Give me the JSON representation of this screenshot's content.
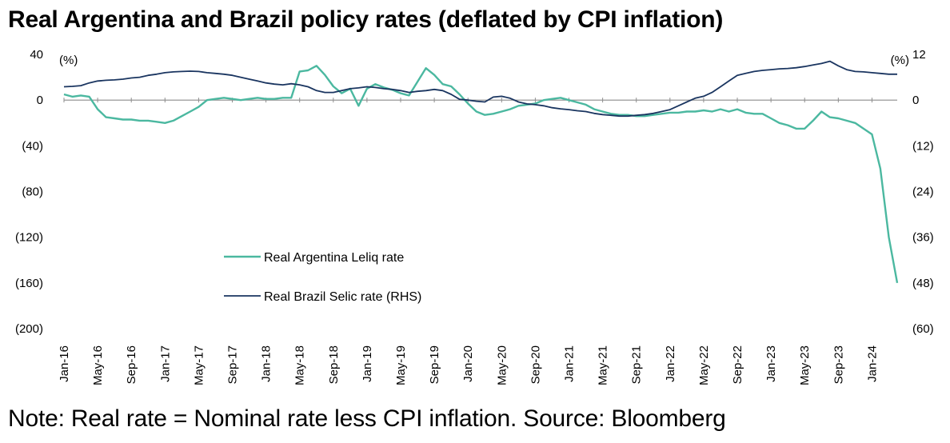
{
  "title": "Real Argentina and Brazil policy rates (deflated by CPI inflation)",
  "note": "Note: Real rate = Nominal rate less CPI inflation. Source: Bloomberg",
  "chart_data": {
    "type": "line",
    "title": "Real Argentina and Brazil policy rates (deflated by CPI inflation)",
    "left_axis": {
      "unit_label": "(%)",
      "range": [
        -200,
        40
      ],
      "ticks": [
        40,
        0,
        -40,
        -80,
        -120,
        -160,
        -200
      ],
      "tick_labels": [
        "40",
        "0",
        "(40)",
        "(80)",
        "(120)",
        "(160)",
        "(200)"
      ]
    },
    "right_axis": {
      "unit_label": "(%)",
      "range": [
        -60,
        12
      ],
      "ticks": [
        12,
        0,
        -12,
        -24,
        -36,
        -48,
        -60
      ],
      "tick_labels": [
        "12",
        "0",
        "(12)",
        "(24)",
        "(36)",
        "(48)",
        "(60)"
      ]
    },
    "x_range": [
      "2016-01",
      "2024-04"
    ],
    "x_tick_labels": [
      "Jan-16",
      "May-16",
      "Sep-16",
      "Jan-17",
      "May-17",
      "Sep-17",
      "Jan-18",
      "May-18",
      "Sep-18",
      "Jan-19",
      "May-19",
      "Sep-19",
      "Jan-20",
      "May-20",
      "Sep-20",
      "Jan-21",
      "May-21",
      "Sep-21",
      "Jan-22",
      "May-22",
      "Sep-22",
      "Jan-23",
      "May-23",
      "Sep-23",
      "Jan-24"
    ],
    "legend_placement": "center-left",
    "colors": {
      "argentina": "#4bb8a0",
      "brazil": "#1a3560",
      "axis": "#8c8c8c"
    },
    "series": [
      {
        "name": "Real Argentina Leliq rate",
        "axis": "left",
        "x": [
          "2016-01",
          "2016-02",
          "2016-03",
          "2016-04",
          "2016-05",
          "2016-06",
          "2016-07",
          "2016-08",
          "2016-09",
          "2016-10",
          "2016-11",
          "2016-12",
          "2017-01",
          "2017-02",
          "2017-03",
          "2017-04",
          "2017-05",
          "2017-06",
          "2017-07",
          "2017-08",
          "2017-09",
          "2017-10",
          "2017-11",
          "2017-12",
          "2018-01",
          "2018-02",
          "2018-03",
          "2018-04",
          "2018-05",
          "2018-06",
          "2018-07",
          "2018-08",
          "2018-09",
          "2018-10",
          "2018-11",
          "2018-12",
          "2019-01",
          "2019-02",
          "2019-03",
          "2019-04",
          "2019-05",
          "2019-06",
          "2019-07",
          "2019-08",
          "2019-09",
          "2019-10",
          "2019-11",
          "2019-12",
          "2020-01",
          "2020-02",
          "2020-03",
          "2020-04",
          "2020-05",
          "2020-06",
          "2020-07",
          "2020-08",
          "2020-09",
          "2020-10",
          "2020-11",
          "2020-12",
          "2021-01",
          "2021-02",
          "2021-03",
          "2021-04",
          "2021-05",
          "2021-06",
          "2021-07",
          "2021-08",
          "2021-09",
          "2021-10",
          "2021-11",
          "2021-12",
          "2022-01",
          "2022-02",
          "2022-03",
          "2022-04",
          "2022-05",
          "2022-06",
          "2022-07",
          "2022-08",
          "2022-09",
          "2022-10",
          "2022-11",
          "2022-12",
          "2023-01",
          "2023-02",
          "2023-03",
          "2023-04",
          "2023-05",
          "2023-06",
          "2023-07",
          "2023-08",
          "2023-09",
          "2023-10",
          "2023-11",
          "2023-12",
          "2024-01",
          "2024-02",
          "2024-03",
          "2024-04"
        ],
        "values": [
          5,
          3,
          4,
          3,
          -8,
          -15,
          -16,
          -17,
          -17,
          -18,
          -18,
          -19,
          -20,
          -18,
          -14,
          -10,
          -6,
          0,
          1,
          2,
          1,
          0,
          1,
          2,
          1,
          1,
          2,
          2,
          25,
          26,
          30,
          22,
          12,
          6,
          10,
          -5,
          10,
          14,
          11,
          9,
          6,
          4,
          16,
          28,
          22,
          14,
          12,
          5,
          -3,
          -10,
          -13,
          -12,
          -10,
          -8,
          -5,
          -4,
          -3,
          0,
          1,
          2,
          0,
          -2,
          -4,
          -8,
          -10,
          -12,
          -13,
          -13,
          -14,
          -14,
          -13,
          -12,
          -11,
          -11,
          -10,
          -10,
          -9,
          -10,
          -8,
          -10,
          -8,
          -11,
          -12,
          -12,
          -16,
          -20,
          -22,
          -25,
          -25,
          -18,
          -10,
          -15,
          -16,
          -18,
          -20,
          -25,
          -30,
          -60,
          -120,
          -160
        ]
      },
      {
        "name": "Real Brazil Selic rate (RHS)",
        "axis": "right",
        "x": [
          "2016-01",
          "2016-02",
          "2016-03",
          "2016-04",
          "2016-05",
          "2016-06",
          "2016-07",
          "2016-08",
          "2016-09",
          "2016-10",
          "2016-11",
          "2016-12",
          "2017-01",
          "2017-02",
          "2017-03",
          "2017-04",
          "2017-05",
          "2017-06",
          "2017-07",
          "2017-08",
          "2017-09",
          "2017-10",
          "2017-11",
          "2017-12",
          "2018-01",
          "2018-02",
          "2018-03",
          "2018-04",
          "2018-05",
          "2018-06",
          "2018-07",
          "2018-08",
          "2018-09",
          "2018-10",
          "2018-11",
          "2018-12",
          "2019-01",
          "2019-02",
          "2019-03",
          "2019-04",
          "2019-05",
          "2019-06",
          "2019-07",
          "2019-08",
          "2019-09",
          "2019-10",
          "2019-11",
          "2019-12",
          "2020-01",
          "2020-02",
          "2020-03",
          "2020-04",
          "2020-05",
          "2020-06",
          "2020-07",
          "2020-08",
          "2020-09",
          "2020-10",
          "2020-11",
          "2020-12",
          "2021-01",
          "2021-02",
          "2021-03",
          "2021-04",
          "2021-05",
          "2021-06",
          "2021-07",
          "2021-08",
          "2021-09",
          "2021-10",
          "2021-11",
          "2021-12",
          "2022-01",
          "2022-02",
          "2022-03",
          "2022-04",
          "2022-05",
          "2022-06",
          "2022-07",
          "2022-08",
          "2022-09",
          "2022-10",
          "2022-11",
          "2022-12",
          "2023-01",
          "2023-02",
          "2023-03",
          "2023-04",
          "2023-05",
          "2023-06",
          "2023-07",
          "2023-08",
          "2023-09",
          "2023-10",
          "2023-11",
          "2023-12",
          "2024-01",
          "2024-02",
          "2024-03",
          "2024-04"
        ],
        "values": [
          3.5,
          3.6,
          3.8,
          4.5,
          5.0,
          5.2,
          5.3,
          5.5,
          5.8,
          6.0,
          6.5,
          6.8,
          7.2,
          7.4,
          7.5,
          7.6,
          7.5,
          7.2,
          7.0,
          6.8,
          6.5,
          6.0,
          5.5,
          5.0,
          4.5,
          4.2,
          4.0,
          4.3,
          4.0,
          3.5,
          2.5,
          2.0,
          2.0,
          2.5,
          3.0,
          3.2,
          3.5,
          3.3,
          3.0,
          2.8,
          2.5,
          2.0,
          2.3,
          2.5,
          2.8,
          2.5,
          1.5,
          0.2,
          0.0,
          -0.3,
          -0.5,
          0.8,
          1.0,
          0.5,
          -0.5,
          -1.0,
          -1.2,
          -1.5,
          -2.0,
          -2.3,
          -2.5,
          -2.8,
          -3.0,
          -3.5,
          -3.8,
          -4.0,
          -4.2,
          -4.2,
          -4.0,
          -3.8,
          -3.5,
          -3.0,
          -2.5,
          -1.5,
          -0.5,
          0.5,
          1.0,
          2.0,
          3.5,
          5.0,
          6.5,
          7.0,
          7.5,
          7.8,
          8.0,
          8.2,
          8.3,
          8.5,
          8.8,
          9.2,
          9.6,
          10.2,
          9.0,
          8.0,
          7.5,
          7.4,
          7.2,
          7.0,
          6.8,
          6.8
        ]
      }
    ]
  }
}
